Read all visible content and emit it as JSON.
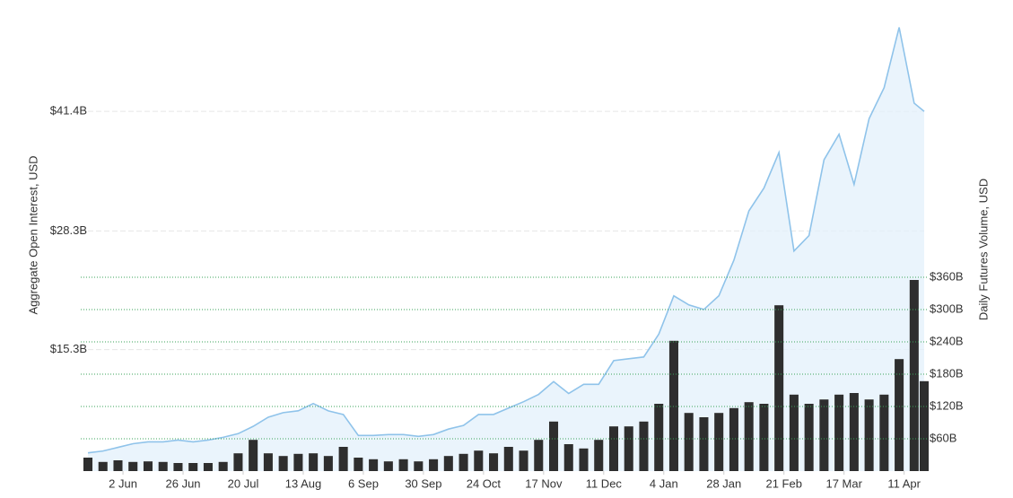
{
  "chart_data": {
    "type": "combo",
    "y_label": "Aggregate Open Interest, USD",
    "y2_label": "Daily Futures Volume, USD",
    "x": [
      0,
      6,
      12,
      18,
      24,
      30,
      36,
      42,
      48,
      54,
      60,
      66,
      72,
      78,
      84,
      90,
      96,
      102,
      108,
      114,
      120,
      126,
      132,
      138,
      144,
      150,
      156,
      162,
      168,
      174,
      180,
      186,
      192,
      198,
      204,
      210,
      216,
      222,
      228,
      234,
      240,
      246,
      252,
      258,
      264,
      270,
      276,
      282,
      288,
      294,
      300,
      306,
      312,
      318,
      324,
      330,
      334
    ],
    "xlim": [
      0,
      334
    ],
    "xticks": [
      {
        "value": 14,
        "label": "2 Jun"
      },
      {
        "value": 38,
        "label": "26 Jun"
      },
      {
        "value": 62,
        "label": "20 Jul"
      },
      {
        "value": 86,
        "label": "13 Aug"
      },
      {
        "value": 110,
        "label": "6 Sep"
      },
      {
        "value": 134,
        "label": "30 Sep"
      },
      {
        "value": 158,
        "label": "24 Oct"
      },
      {
        "value": 182,
        "label": "17 Nov"
      },
      {
        "value": 206,
        "label": "11 Dec"
      },
      {
        "value": 230,
        "label": "4 Jan"
      },
      {
        "value": 254,
        "label": "28 Jan"
      },
      {
        "value": 278,
        "label": "21 Feb"
      },
      {
        "value": 302,
        "label": "17 Mar"
      },
      {
        "value": 326,
        "label": "11 Apr"
      }
    ],
    "ylim": [
      2,
      53.6
    ],
    "yticks": [
      {
        "value": 15.3,
        "label": "$15.3B"
      },
      {
        "value": 28.3,
        "label": "$28.3B"
      },
      {
        "value": 41.4,
        "label": "$41.4B"
      }
    ],
    "y2lim": [
      0,
      875
    ],
    "y2ticks": [
      {
        "value": 60,
        "label": "$60B"
      },
      {
        "value": 120,
        "label": "$120B"
      },
      {
        "value": 180,
        "label": "$180B"
      },
      {
        "value": 240,
        "label": "$240B"
      },
      {
        "value": 300,
        "label": "$300B"
      },
      {
        "value": 360,
        "label": "$360B"
      }
    ],
    "series": [
      {
        "type": "bar",
        "axis": "y2",
        "color": "#2e2e2e",
        "values": [
          25,
          17,
          20,
          17,
          18,
          17,
          15,
          15,
          15,
          17,
          33,
          58,
          33,
          28,
          32,
          33,
          28,
          45,
          25,
          22,
          18,
          22,
          18,
          22,
          28,
          32,
          38,
          33,
          45,
          38,
          58,
          92,
          50,
          42,
          58,
          83,
          83,
          92,
          125,
          242,
          108,
          100,
          108,
          117,
          128,
          125,
          308,
          142,
          125,
          133,
          142,
          145,
          133,
          142,
          208,
          355,
          167
        ]
      },
      {
        "type": "area",
        "axis": "y",
        "color": "#8fc3ea",
        "values": [
          4.0,
          4.2,
          4.6,
          5.0,
          5.2,
          5.2,
          5.4,
          5.2,
          5.4,
          5.7,
          6.1,
          6.9,
          7.9,
          8.4,
          8.6,
          9.4,
          8.6,
          8.2,
          5.9,
          5.9,
          6.0,
          6.0,
          5.8,
          6.0,
          6.6,
          7.0,
          8.2,
          8.2,
          8.9,
          9.6,
          10.4,
          11.8,
          10.5,
          11.5,
          11.5,
          14.1,
          14.3,
          14.5,
          17.0,
          21.2,
          20.2,
          19.7,
          21.2,
          25.1,
          30.5,
          33.0,
          36.9,
          26.1,
          27.8,
          36.1,
          38.9,
          33.4,
          40.6,
          44.0,
          50.6,
          42.3,
          41.4
        ]
      }
    ]
  }
}
